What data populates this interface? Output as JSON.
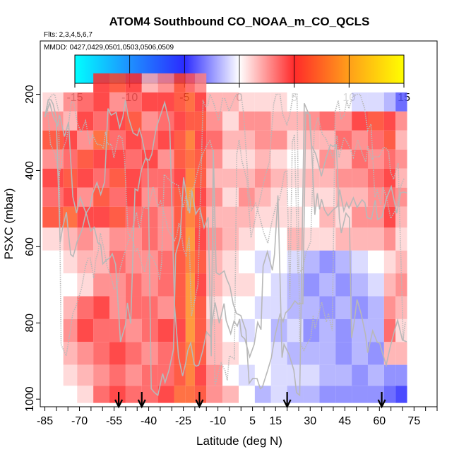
{
  "chart_data": {
    "type": "heatmap",
    "title": "ATOM4 Southbound CO_NOAA_m_CO_QCLS",
    "flights_note": "Flts: 2,3,4,5,6,7",
    "dates_note": "MMDD: 0427,0429,0501,0503,0506,0509",
    "xlabel": "Latitude (deg N)",
    "ylabel": "PSXC (mbar)",
    "xlim": [
      -87,
      85
    ],
    "ylim": [
      1020,
      60
    ],
    "x_ticks": [
      -85,
      -70,
      -55,
      -40,
      -25,
      -10,
      5,
      15,
      30,
      45,
      60,
      75
    ],
    "x_tick_labels": [
      "-85",
      "-70",
      "-55",
      "-40",
      "-25",
      "-10",
      "5",
      "15",
      "30",
      "45",
      "60",
      "75"
    ],
    "y_ticks": [
      200,
      400,
      600,
      800,
      1000
    ],
    "y_tick_labels": [
      "200",
      "400",
      "600",
      "800",
      "1000"
    ],
    "colorbar": {
      "range": [
        -15,
        15
      ],
      "ticks": [
        -15,
        -10,
        -5,
        0,
        5,
        10,
        15
      ],
      "tick_labels": [
        "-15",
        "-10",
        "-5",
        "0",
        "5",
        "10",
        "15"
      ],
      "stops": [
        {
          "value": -15,
          "color": "#00ffff"
        },
        {
          "value": -10,
          "color": "#1e90ff"
        },
        {
          "value": -5,
          "color": "#2b2bff"
        },
        {
          "value": 0,
          "color": "#ffffff"
        },
        {
          "value": 5,
          "color": "#ff2a2a"
        },
        {
          "value": 10,
          "color": "#ff9f1a"
        },
        {
          "value": 15,
          "color": "#ffff00"
        }
      ]
    },
    "arrow_latitudes": [
      -53,
      -43,
      -18,
      20,
      61
    ],
    "pressure_levels": [
      170,
      220,
      270,
      320,
      370,
      420,
      470,
      520,
      580,
      640,
      700,
      760,
      820,
      880,
      940,
      990
    ],
    "columns": [
      {
        "lat_range": [
          -86,
          -77
        ],
        "values": [
          null,
          1,
          3,
          6,
          3,
          5,
          4,
          6,
          1,
          0,
          0,
          0,
          0,
          0,
          0,
          0
        ]
      },
      {
        "lat_range": [
          -77,
          -71
        ],
        "values": [
          null,
          3,
          2,
          5,
          4,
          6,
          5,
          7,
          2,
          1,
          0,
          2,
          3,
          2,
          1,
          0
        ]
      },
      {
        "lat_range": [
          -71,
          -64
        ],
        "values": [
          null,
          4,
          5,
          3,
          6,
          5,
          3,
          5,
          3,
          2,
          1,
          4,
          5,
          3,
          2,
          1
        ]
      },
      {
        "lat_range": [
          -64,
          -57
        ],
        "values": [
          5,
          5,
          4,
          7,
          5,
          4,
          6,
          5,
          2,
          2,
          3,
          5,
          4,
          4,
          3,
          4
        ]
      },
      {
        "lat_range": [
          -57,
          -50
        ],
        "values": [
          6,
          3,
          5,
          4,
          5,
          6,
          4,
          6,
          3,
          4,
          3,
          3,
          4,
          5,
          4,
          5
        ]
      },
      {
        "lat_range": [
          -50,
          -43
        ],
        "values": [
          5,
          4,
          6,
          5,
          4,
          5,
          5,
          4,
          3,
          3,
          4,
          4,
          3,
          4,
          3,
          4
        ]
      },
      {
        "lat_range": [
          -43,
          -36
        ],
        "values": [
          2,
          5,
          3,
          4,
          5,
          4,
          3,
          4,
          4,
          3,
          3,
          4,
          4,
          3,
          4,
          4
        ]
      },
      {
        "lat_range": [
          -36,
          -29
        ],
        "values": [
          3,
          5,
          4,
          5,
          3,
          4,
          4,
          3,
          3,
          4,
          4,
          3,
          5,
          4,
          4,
          5
        ]
      },
      {
        "lat_range": [
          -29,
          -24
        ],
        "values": [
          6,
          6,
          5,
          6,
          6,
          5,
          6,
          6,
          6,
          6,
          6,
          6,
          5,
          6,
          6,
          7
        ]
      },
      {
        "lat_range": [
          -24,
          -20
        ],
        "values": [
          4,
          7,
          6,
          8,
          7,
          8,
          9,
          8,
          9,
          8,
          9,
          9,
          9,
          8,
          8,
          7
        ]
      },
      {
        "lat_range": [
          -20,
          -15
        ],
        "values": [
          3,
          5,
          6,
          5,
          6,
          6,
          5,
          6,
          5,
          6,
          5,
          6,
          6,
          6,
          5,
          6
        ]
      },
      {
        "lat_range": [
          -15,
          -8
        ],
        "values": [
          null,
          2,
          3,
          4,
          3,
          2,
          3,
          2,
          3,
          2,
          2,
          1,
          2,
          2,
          3,
          3
        ]
      },
      {
        "lat_range": [
          -8,
          -1
        ],
        "values": [
          null,
          2,
          1,
          2,
          1,
          2,
          1,
          2,
          2,
          1,
          1,
          0,
          0,
          1,
          0,
          2
        ]
      },
      {
        "lat_range": [
          -1,
          6
        ],
        "values": [
          null,
          1,
          3,
          2,
          1,
          2,
          3,
          2,
          1,
          0,
          1,
          0,
          -1,
          0,
          -1,
          0
        ]
      },
      {
        "lat_range": [
          6,
          13
        ],
        "values": [
          null,
          1,
          3,
          3,
          2,
          3,
          2,
          1,
          0,
          -1,
          0,
          -1,
          0,
          0,
          0,
          -2
        ]
      },
      {
        "lat_range": [
          13,
          20
        ],
        "values": [
          null,
          1,
          2,
          3,
          1,
          2,
          1,
          1,
          0,
          0,
          -1,
          -1,
          -2,
          -1,
          -1,
          -1
        ]
      },
      {
        "lat_range": [
          20,
          27
        ],
        "values": [
          null,
          0,
          2,
          1,
          0,
          1,
          0,
          1,
          2,
          -1,
          -2,
          -2,
          -1,
          -2,
          -1,
          -2
        ]
      },
      {
        "lat_range": [
          27,
          34
        ],
        "values": [
          null,
          0,
          3,
          2,
          1,
          2,
          1,
          0,
          1,
          -2,
          -3,
          -2,
          -3,
          -2,
          -1,
          -2
        ]
      },
      {
        "lat_range": [
          34,
          41
        ],
        "values": [
          null,
          0,
          4,
          2,
          3,
          2,
          1,
          2,
          1,
          -3,
          -2,
          -3,
          -2,
          -2,
          -2,
          -3
        ]
      },
      {
        "lat_range": [
          41,
          48
        ],
        "values": [
          null,
          0,
          3,
          4,
          2,
          3,
          2,
          1,
          2,
          -2,
          -3,
          -2,
          -3,
          -3,
          -2,
          -3
        ]
      },
      {
        "lat_range": [
          48,
          55
        ],
        "values": [
          null,
          -1,
          5,
          3,
          4,
          3,
          2,
          3,
          2,
          -1,
          -2,
          -3,
          -2,
          -2,
          -3,
          -3
        ]
      },
      {
        "lat_range": [
          55,
          62
        ],
        "values": [
          null,
          -1,
          6,
          4,
          3,
          4,
          3,
          3,
          2,
          0,
          -1,
          -2,
          -2,
          -3,
          -2,
          -3
        ]
      },
      {
        "lat_range": [
          62,
          67
        ],
        "values": [
          null,
          -2,
          5,
          6,
          4,
          5,
          4,
          5,
          3,
          1,
          2,
          3,
          4,
          2,
          -3,
          -4
        ]
      },
      {
        "lat_range": [
          67,
          72
        ],
        "values": [
          null,
          -4,
          3,
          2,
          3,
          2,
          3,
          2,
          1,
          2,
          3,
          2,
          1,
          2,
          -3,
          -5
        ]
      }
    ]
  }
}
